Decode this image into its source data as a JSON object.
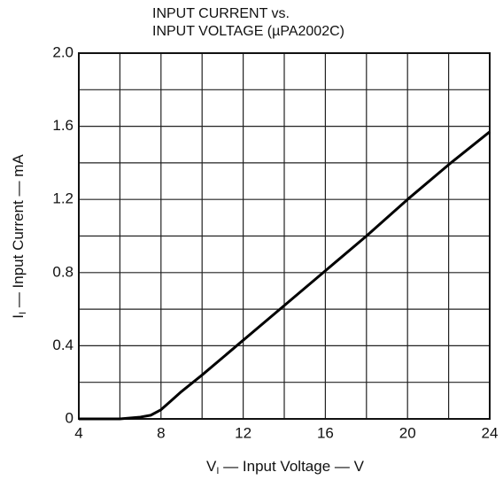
{
  "chart_data": {
    "type": "line",
    "title": [
      "INPUT CURRENT vs.",
      "INPUT VOLTAGE (µPA2002C)"
    ],
    "xlabel": {
      "symbol": "V",
      "subscript": "I",
      "text": " — Input Voltage — V"
    },
    "ylabel": {
      "symbol": "I",
      "subscript": "I",
      "text": " — Input Current — mA"
    },
    "x": [
      4,
      5,
      6,
      7,
      7.5,
      8,
      8.5,
      9,
      10,
      12,
      14,
      16,
      18,
      20,
      22,
      24
    ],
    "series": [
      {
        "name": "Input Current",
        "color": "#000000",
        "values": [
          0,
          0,
          0,
          0.01,
          0.02,
          0.05,
          0.1,
          0.15,
          0.24,
          0.43,
          0.62,
          0.81,
          1.0,
          1.2,
          1.39,
          1.57
        ]
      }
    ],
    "xlim": [
      4,
      24
    ],
    "ylim": [
      0,
      2
    ],
    "xticks": [
      4,
      8,
      12,
      16,
      20,
      24
    ],
    "yticks": [
      0,
      0.4,
      0.8,
      1.2,
      1.6,
      {
        "value": 2,
        "label": "2.0"
      }
    ],
    "x_minor_ticks": [
      6,
      10,
      14,
      18,
      22
    ],
    "y_minor_ticks": [
      0.2,
      0.6,
      1.0,
      1.4,
      1.8
    ],
    "grid": true
  }
}
